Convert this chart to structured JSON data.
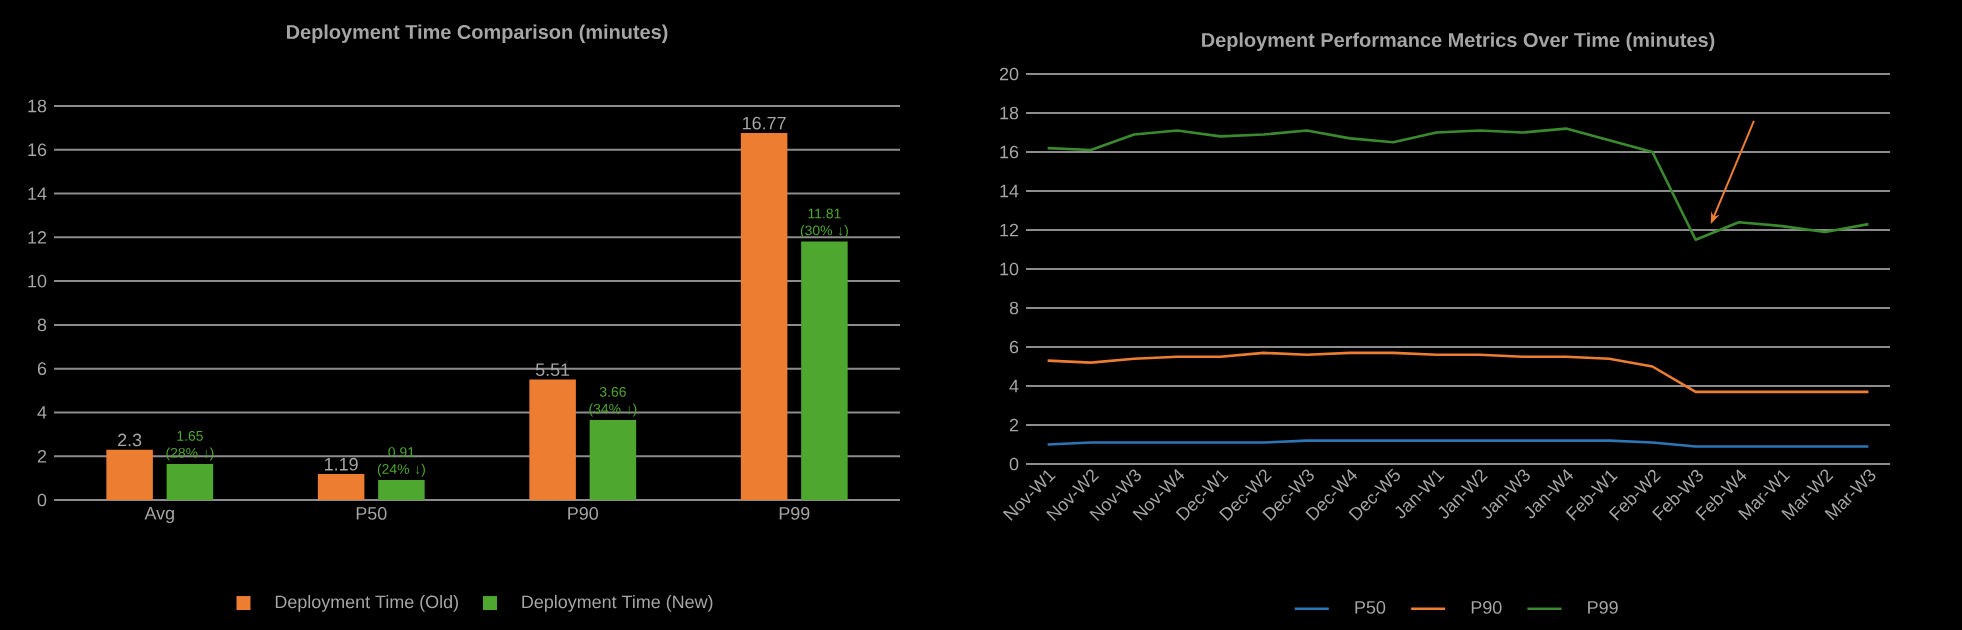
{
  "chart_data": [
    {
      "type": "bar",
      "title": "Deployment Time Comparison (minutes)",
      "categories": [
        "Avg",
        "P50",
        "P90",
        "P99"
      ],
      "series": [
        {
          "name": "Deployment Time (Old)",
          "color": "#ed7d31",
          "values": [
            2.3,
            1.19,
            5.51,
            16.77
          ],
          "value_labels": [
            "2.3",
            "1.19",
            "5.51",
            "16.77"
          ]
        },
        {
          "name": "Deployment Time (New)",
          "color": "#4ea72e",
          "values": [
            1.65,
            0.91,
            3.66,
            11.81
          ],
          "value_labels": [
            "1.65 (28% ↓)",
            "0.91 (24% ↓)",
            "3.66 (34% ↓)",
            "11.81 (30% ↓)"
          ]
        }
      ],
      "ylim": [
        0,
        18
      ],
      "yticks": [
        0,
        2,
        4,
        6,
        8,
        10,
        12,
        14,
        16,
        18
      ],
      "grid": "y",
      "legend": "bottom"
    },
    {
      "type": "line",
      "title": "Deployment Performance Metrics Over Time (minutes)",
      "categories": [
        "Nov-W1",
        "Nov-W2",
        "Nov-W3",
        "Nov-W4",
        "Dec-W1",
        "Dec-W2",
        "Dec-W3",
        "Dec-W4",
        "Dec-W5",
        "Jan-W1",
        "Jan-W2",
        "Jan-W3",
        "Jan-W4",
        "Feb-W1",
        "Feb-W2",
        "Feb-W3",
        "Feb-W4",
        "Mar-W1",
        "Mar-W2",
        "Mar-W3"
      ],
      "series": [
        {
          "name": "P50",
          "color": "#2e75b6",
          "values": [
            1.0,
            1.1,
            1.1,
            1.1,
            1.1,
            1.1,
            1.2,
            1.2,
            1.2,
            1.2,
            1.2,
            1.2,
            1.2,
            1.2,
            1.1,
            0.9,
            0.9,
            0.9,
            0.9,
            0.9
          ]
        },
        {
          "name": "P90",
          "color": "#ed7d31",
          "values": [
            5.3,
            5.2,
            5.4,
            5.5,
            5.5,
            5.7,
            5.6,
            5.7,
            5.7,
            5.6,
            5.6,
            5.5,
            5.5,
            5.4,
            5.0,
            3.7,
            3.7,
            3.7,
            3.7,
            3.7
          ]
        },
        {
          "name": "P99",
          "color": "#3a8a2e",
          "values": [
            16.2,
            16.1,
            16.9,
            17.1,
            16.8,
            16.9,
            17.1,
            16.7,
            16.5,
            17.0,
            17.1,
            17.0,
            17.2,
            16.6,
            16.0,
            11.5,
            12.4,
            12.2,
            11.9,
            12.3
          ]
        }
      ],
      "ylim": [
        0,
        20
      ],
      "yticks": [
        0,
        2,
        4,
        6,
        8,
        10,
        12,
        14,
        16,
        18,
        20
      ],
      "grid": "y",
      "legend": "bottom",
      "marker": "none"
    }
  ]
}
